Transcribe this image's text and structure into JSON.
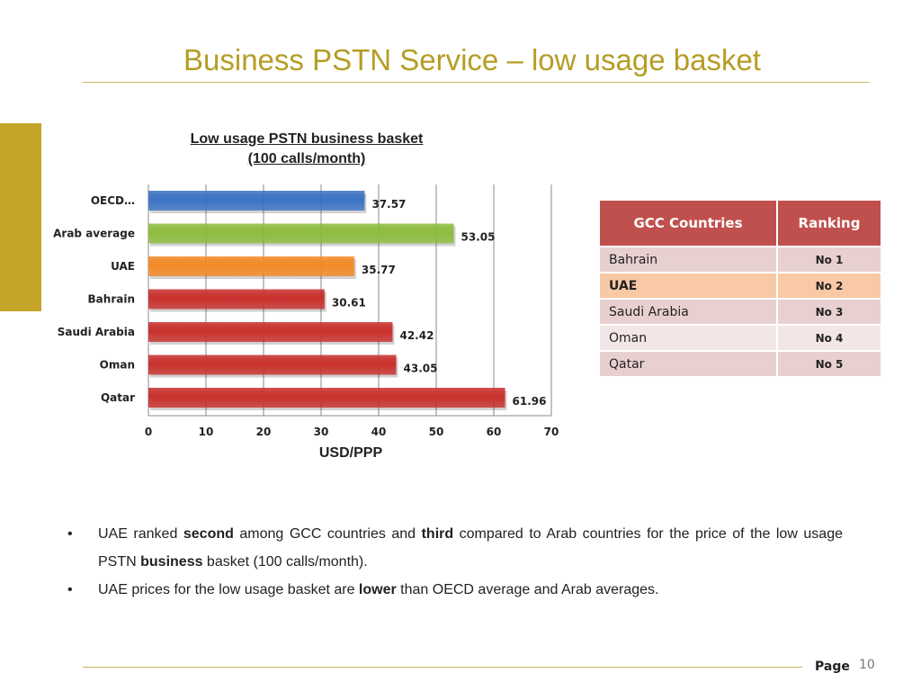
{
  "slide": {
    "title": "Business PSTN Service – low usage basket",
    "page_label": "Page",
    "page_number": "10"
  },
  "chart_data": {
    "type": "bar",
    "orientation": "horizontal",
    "title_line1": "Low usage PSTN business basket",
    "title_line2": " (100 calls/month)",
    "xlabel": "USD/PPP",
    "xlim": [
      0,
      70
    ],
    "xticks": [
      0,
      10,
      20,
      30,
      40,
      50,
      60,
      70
    ],
    "grid": true,
    "categories": [
      "OECD…",
      "Arab average",
      "UAE",
      "Bahrain",
      "Saudi Arabia",
      "Oman",
      "Qatar"
    ],
    "values": [
      37.57,
      53.05,
      35.77,
      30.61,
      42.42,
      43.05,
      61.96
    ],
    "value_labels": [
      "37.57",
      "53.05",
      "35.77",
      "30.61",
      "42.42",
      "43.05",
      "61.96"
    ],
    "bar_colors": [
      "#3b73c4",
      "#8ebc3e",
      "#f48a25",
      "#c9302c",
      "#c9302c",
      "#c9302c",
      "#c9302c"
    ]
  },
  "table": {
    "headers": [
      "GCC Countries",
      "Ranking"
    ],
    "rows": [
      {
        "country": "Bahrain",
        "rank": "No 1",
        "style": "r-odd"
      },
      {
        "country": "UAE",
        "rank": "No 2",
        "style": "r-hl"
      },
      {
        "country": "Saudi Arabia",
        "rank": "No 3",
        "style": "r-odd"
      },
      {
        "country": "Oman",
        "rank": "No 4",
        "style": "r-even"
      },
      {
        "country": "Qatar",
        "rank": "No 5",
        "style": "r-odd"
      }
    ]
  },
  "bullets": [
    {
      "parts": [
        {
          "text": "UAE ranked ",
          "bold": false
        },
        {
          "text": "second",
          "bold": true
        },
        {
          "text": " among GCC countries and ",
          "bold": false
        },
        {
          "text": "third",
          "bold": true
        },
        {
          "text": " compared to Arab countries for the price of the low usage PSTN ",
          "bold": false
        },
        {
          "text": "business",
          "bold": true
        },
        {
          "text": " basket (100 calls/month).",
          "bold": false
        }
      ]
    },
    {
      "parts": [
        {
          "text": "UAE prices for the low usage basket are ",
          "bold": false
        },
        {
          "text": "lower",
          "bold": true
        },
        {
          "text": " than OECD average and Arab averages.",
          "bold": false
        }
      ]
    }
  ]
}
